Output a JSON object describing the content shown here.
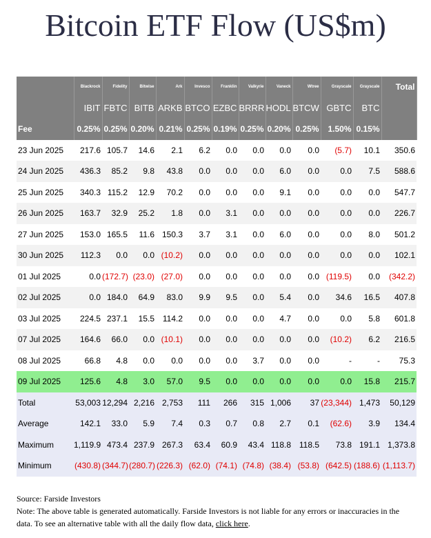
{
  "title": "Bitcoin ETF Flow (US$m)",
  "table": {
    "issuers": [
      "Blackrock",
      "Fidelity",
      "Bitwise",
      "Ark",
      "Invesco",
      "Franklin",
      "Valkyrie",
      "Vaneck",
      "Wtree",
      "Grayscale",
      "Grayscale"
    ],
    "total_header": "Total",
    "tickers": [
      "IBIT",
      "FBTC",
      "BITB",
      "ARKB",
      "BTCO",
      "EZBC",
      "BRRR",
      "HODL",
      "BTCW",
      "GBTC",
      "BTC"
    ],
    "fee": {
      "label": "Fee",
      "values": [
        "0.25%",
        "0.25%",
        "0.20%",
        "0.21%",
        "0.25%",
        "0.19%",
        "0.25%",
        "0.20%",
        "0.25%",
        "1.50%",
        "0.15%"
      ]
    },
    "rows": [
      {
        "date": "23 Jun 2025",
        "values": [
          "217.6",
          "105.7",
          "14.6",
          "2.1",
          "6.2",
          "0.0",
          "0.0",
          "0.0",
          "0.0",
          "(5.7)",
          "10.1",
          "350.6"
        ]
      },
      {
        "date": "24 Jun 2025",
        "values": [
          "436.3",
          "85.2",
          "9.8",
          "43.8",
          "0.0",
          "0.0",
          "0.0",
          "6.0",
          "0.0",
          "0.0",
          "7.5",
          "588.6"
        ]
      },
      {
        "date": "25 Jun 2025",
        "values": [
          "340.3",
          "115.2",
          "12.9",
          "70.2",
          "0.0",
          "0.0",
          "0.0",
          "9.1",
          "0.0",
          "0.0",
          "0.0",
          "547.7"
        ]
      },
      {
        "date": "26 Jun 2025",
        "values": [
          "163.7",
          "32.9",
          "25.2",
          "1.8",
          "0.0",
          "3.1",
          "0.0",
          "0.0",
          "0.0",
          "0.0",
          "0.0",
          "226.7"
        ]
      },
      {
        "date": "27 Jun 2025",
        "values": [
          "153.0",
          "165.5",
          "11.6",
          "150.3",
          "3.7",
          "3.1",
          "0.0",
          "6.0",
          "0.0",
          "0.0",
          "8.0",
          "501.2"
        ]
      },
      {
        "date": "30 Jun 2025",
        "values": [
          "112.3",
          "0.0",
          "0.0",
          "(10.2)",
          "0.0",
          "0.0",
          "0.0",
          "0.0",
          "0.0",
          "0.0",
          "0.0",
          "102.1"
        ]
      },
      {
        "date": "01 Jul 2025",
        "values": [
          "0.0",
          "(172.7)",
          "(23.0)",
          "(27.0)",
          "0.0",
          "0.0",
          "0.0",
          "0.0",
          "0.0",
          "(119.5)",
          "0.0",
          "(342.2)"
        ]
      },
      {
        "date": "02 Jul 2025",
        "values": [
          "0.0",
          "184.0",
          "64.9",
          "83.0",
          "9.9",
          "9.5",
          "0.0",
          "5.4",
          "0.0",
          "34.6",
          "16.5",
          "407.8"
        ]
      },
      {
        "date": "03 Jul 2025",
        "values": [
          "224.5",
          "237.1",
          "15.5",
          "114.2",
          "0.0",
          "0.0",
          "0.0",
          "4.7",
          "0.0",
          "0.0",
          "5.8",
          "601.8"
        ]
      },
      {
        "date": "07 Jul 2025",
        "values": [
          "164.6",
          "66.0",
          "0.0",
          "(10.1)",
          "0.0",
          "0.0",
          "0.0",
          "0.0",
          "0.0",
          "(10.2)",
          "6.2",
          "216.5"
        ]
      },
      {
        "date": "08 Jul 2025",
        "values": [
          "66.8",
          "4.8",
          "0.0",
          "0.0",
          "0.0",
          "0.0",
          "3.7",
          "0.0",
          "0.0",
          "-",
          "-",
          "75.3"
        ]
      },
      {
        "date": "09 Jul 2025",
        "values": [
          "125.6",
          "4.8",
          "3.0",
          "57.0",
          "9.5",
          "0.0",
          "0.0",
          "0.0",
          "0.0",
          "0.0",
          "15.8",
          "215.7"
        ]
      }
    ],
    "summary": [
      {
        "label": "Total",
        "values": [
          "53,003",
          "12,294",
          "2,216",
          "2,753",
          "111",
          "266",
          "315",
          "1,006",
          "37",
          "(23,344)",
          "1,473",
          "50,129"
        ]
      },
      {
        "label": "Average",
        "values": [
          "142.1",
          "33.0",
          "5.9",
          "7.4",
          "0.3",
          "0.7",
          "0.8",
          "2.7",
          "0.1",
          "(62.6)",
          "3.9",
          "134.4"
        ]
      },
      {
        "label": "Maximum",
        "values": [
          "1,119.9",
          "473.4",
          "237.9",
          "267.3",
          "63.4",
          "60.9",
          "43.4",
          "118.8",
          "118.5",
          "73.8",
          "191.1",
          "1,373.8"
        ]
      },
      {
        "label": "Minimum",
        "values": [
          "(430.8)",
          "(344.7)",
          "(280.7)",
          "(226.3)",
          "(62.0)",
          "(74.1)",
          "(74.8)",
          "(38.4)",
          "(53.8)",
          "(642.5)",
          "(188.6)",
          "(1,113.7)"
        ]
      }
    ]
  },
  "footer": {
    "source": "Source: Farside Investors",
    "note": "Note: The above table is generated automatically. Farside Investors is not liable for any errors or inaccuracies in the data. To see an alternative table with all the daily flow data, ",
    "link": "click here",
    "end": "."
  }
}
